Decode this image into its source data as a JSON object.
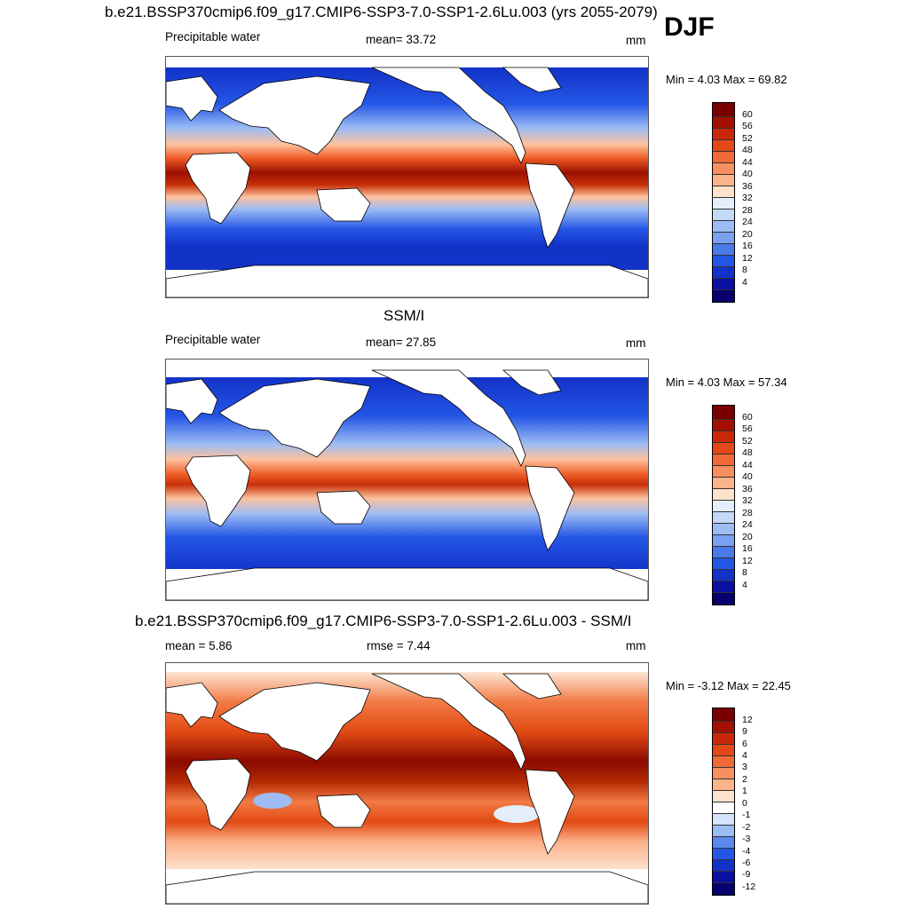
{
  "season": "DJF",
  "colors": {
    "ocean_gradient": [
      "#08006d",
      "#1232c8",
      "#2456e6",
      "#5a88ee",
      "#9cbcf4",
      "#d4e4fa",
      "#fdebd8",
      "#fdc29e",
      "#f88f5e",
      "#ee5a24",
      "#c83008",
      "#9a1000",
      "#7a0000"
    ],
    "diff_gradient": [
      "#08006d",
      "#1436d0",
      "#4a7ae8",
      "#9ebcf3",
      "#e4eefa",
      "#fde6d4",
      "#fbb089",
      "#f27a44",
      "#e24a14",
      "#b52a04",
      "#8a0a00"
    ],
    "land": "#ffffff",
    "coast": "#000000"
  },
  "panels": [
    {
      "title": "b.e21.BSSP370cmip6.f09_g17.CMIP6-SSP3-7.0-SSP1-2.6Lu.003 (yrs 2055-2079)",
      "left_label": "Precipitable water",
      "center_label": "mean=  33.72",
      "right_label": "mm",
      "minmax": "Min =   4.03 Max =  69.82",
      "colorbar_ticks": [
        "60",
        "56",
        "52",
        "48",
        "44",
        "40",
        "36",
        "32",
        "28",
        "24",
        "20",
        "16",
        "12",
        "8",
        "4"
      ],
      "colorbar_colors": [
        "#7a0000",
        "#a31000",
        "#c82808",
        "#e24818",
        "#f06a38",
        "#f88f5e",
        "#fbb48a",
        "#fde2cc",
        "#e4eefc",
        "#c4d8f8",
        "#9cbcf4",
        "#7aa0f0",
        "#4a7ae8",
        "#2456e6",
        "#1232c8",
        "#0a10a0",
        "#08006d"
      ]
    },
    {
      "title": "SSM/I",
      "left_label": "Precipitable water",
      "center_label": "mean=  27.85",
      "right_label": "mm",
      "minmax": "Min =   4.03 Max =  57.34",
      "colorbar_ticks": [
        "60",
        "56",
        "52",
        "48",
        "44",
        "40",
        "36",
        "32",
        "28",
        "24",
        "20",
        "16",
        "12",
        "8",
        "4"
      ],
      "colorbar_colors": [
        "#7a0000",
        "#a31000",
        "#c82808",
        "#e24818",
        "#f06a38",
        "#f88f5e",
        "#fbb48a",
        "#fde2cc",
        "#e4eefc",
        "#c4d8f8",
        "#9cbcf4",
        "#7aa0f0",
        "#4a7ae8",
        "#2456e6",
        "#1232c8",
        "#0a10a0",
        "#08006d"
      ]
    },
    {
      "title": "b.e21.BSSP370cmip6.f09_g17.CMIP6-SSP3-7.0-SSP1-2.6Lu.003 - SSM/I",
      "left_label": "mean =   5.86",
      "center_label": "rmse =   7.44",
      "right_label": "mm",
      "minmax": "Min =  -3.12 Max =  22.45",
      "colorbar_ticks": [
        "12",
        "9",
        "6",
        "4",
        "3",
        "2",
        "1",
        "0",
        "-1",
        "-2",
        "-3",
        "-4",
        "-6",
        "-9",
        "-12"
      ],
      "colorbar_colors": [
        "#7a0000",
        "#a31000",
        "#c82808",
        "#e24818",
        "#f06a38",
        "#f88f5e",
        "#fbb48a",
        "#fde2cc",
        "#ffffff",
        "#d4e4fa",
        "#9cbcf4",
        "#5a88ee",
        "#2456e6",
        "#1232c8",
        "#0a10a0",
        "#08006d"
      ]
    }
  ]
}
